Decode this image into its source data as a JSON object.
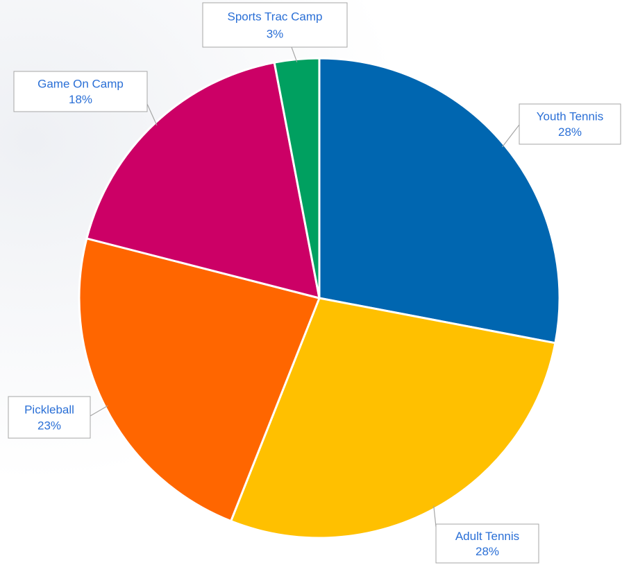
{
  "chart_data": {
    "type": "pie",
    "categories": [
      "Youth Tennis",
      "Adult Tennis",
      "Pickleball",
      "Game On Camp",
      "Sports Trac Camp"
    ],
    "values": [
      28,
      28,
      23,
      18,
      3
    ],
    "value_labels": [
      "28%",
      "28%",
      "23%",
      "18%",
      "3%"
    ],
    "colors": [
      "#0066b0",
      "#ffc000",
      "#ff6600",
      "#cc0066",
      "#00a060"
    ]
  }
}
